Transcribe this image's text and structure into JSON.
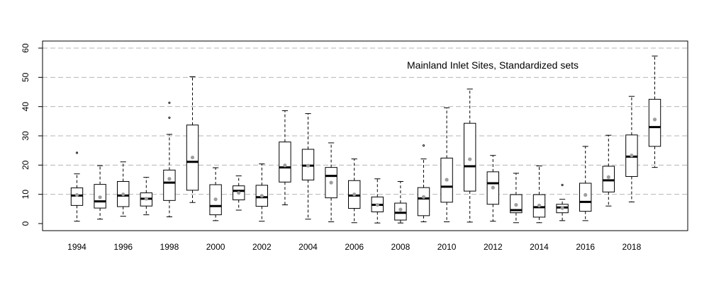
{
  "chart_data": {
    "type": "boxplot",
    "annotation": "Mainland Inlet Sites, Standardized sets",
    "title": "",
    "xlabel": "",
    "ylabel": "",
    "ylim": [
      -2,
      62
    ],
    "y_ticks": [
      0,
      10,
      20,
      30,
      40,
      50,
      60
    ],
    "x_tick_labels": [
      "1994",
      "1996",
      "1998",
      "2000",
      "2002",
      "2004",
      "2006",
      "2008",
      "2010",
      "2012",
      "2014",
      "2016",
      "2018"
    ],
    "grid": "horizontal dashed at y ticks",
    "colors": {
      "box": "#000000",
      "median": "#000000",
      "mean_marker": "#9e9e9e",
      "grid": "#b5b5b5"
    },
    "boxes": [
      {
        "year": 1994,
        "min": 0.8,
        "q1": 6.2,
        "median": 9.6,
        "q3": 12.2,
        "max": 17,
        "mean": 9.8,
        "outliers": [
          24.2
        ]
      },
      {
        "year": 1995,
        "min": 1.5,
        "q1": 5.3,
        "median": 7.6,
        "q3": 13.4,
        "max": 19.8,
        "mean": 9.0,
        "outliers": []
      },
      {
        "year": 1996,
        "min": 2.5,
        "q1": 5.8,
        "median": 9.6,
        "q3": 14.4,
        "max": 21.1,
        "mean": 10.0,
        "outliers": []
      },
      {
        "year": 1997,
        "min": 3.0,
        "q1": 6.0,
        "median": 8.5,
        "q3": 10.5,
        "max": 15.8,
        "mean": 8.5,
        "outliers": []
      },
      {
        "year": 1998,
        "min": 2.3,
        "q1": 7.9,
        "median": 14.0,
        "q3": 18.3,
        "max": 30.5,
        "mean": 15.3,
        "outliers": [
          36.2,
          41.3
        ]
      },
      {
        "year": 1999,
        "min": 7.2,
        "q1": 11.4,
        "median": 21.1,
        "q3": 33.7,
        "max": 50.2,
        "mean": 22.6,
        "outliers": []
      },
      {
        "year": 2000,
        "min": 1.0,
        "q1": 3.0,
        "median": 6.0,
        "q3": 13.3,
        "max": 19.1,
        "mean": 8.3,
        "outliers": []
      },
      {
        "year": 2001,
        "min": 4.6,
        "q1": 8.1,
        "median": 11.2,
        "q3": 12.9,
        "max": 16.3,
        "mean": 10.5,
        "outliers": []
      },
      {
        "year": 2002,
        "min": 0.8,
        "q1": 5.9,
        "median": 9.0,
        "q3": 13.1,
        "max": 20.4,
        "mean": 9.5,
        "outliers": []
      },
      {
        "year": 2003,
        "min": 6.4,
        "q1": 14.2,
        "median": 19.2,
        "q3": 27.9,
        "max": 38.6,
        "mean": 19.9,
        "outliers": []
      },
      {
        "year": 2004,
        "min": 1.5,
        "q1": 14.9,
        "median": 19.8,
        "q3": 25.4,
        "max": 37.6,
        "mean": 19.8,
        "outliers": []
      },
      {
        "year": 2005,
        "min": 0.6,
        "q1": 8.8,
        "median": 16.3,
        "q3": 19.2,
        "max": 27.6,
        "mean": 14.0,
        "outliers": []
      },
      {
        "year": 2006,
        "min": 0.3,
        "q1": 5.2,
        "median": 9.6,
        "q3": 14.7,
        "max": 22.1,
        "mean": 10.0,
        "outliers": []
      },
      {
        "year": 2007,
        "min": 0.2,
        "q1": 4.0,
        "median": 6.4,
        "q3": 9.1,
        "max": 15.3,
        "mean": 6.4,
        "outliers": []
      },
      {
        "year": 2008,
        "min": 0.2,
        "q1": 1.2,
        "median": 3.7,
        "q3": 7.0,
        "max": 14.4,
        "mean": 4.8,
        "outliers": []
      },
      {
        "year": 2009,
        "min": 0.6,
        "q1": 2.7,
        "median": 8.6,
        "q3": 12.3,
        "max": 22.1,
        "mean": 9.1,
        "outliers": [
          26.7
        ]
      },
      {
        "year": 2010,
        "min": 0.6,
        "q1": 7.3,
        "median": 12.6,
        "q3": 22.4,
        "max": 39.6,
        "mean": 15.0,
        "outliers": []
      },
      {
        "year": 2011,
        "min": 0.5,
        "q1": 11.1,
        "median": 19.6,
        "q3": 34.3,
        "max": 46.0,
        "mean": 22.0,
        "outliers": []
      },
      {
        "year": 2012,
        "min": 0.8,
        "q1": 6.6,
        "median": 13.8,
        "q3": 17.7,
        "max": 23.3,
        "mean": 12.3,
        "outliers": []
      },
      {
        "year": 2013,
        "min": 0.3,
        "q1": 3.7,
        "median": 4.6,
        "q3": 9.9,
        "max": 17.2,
        "mean": 6.4,
        "outliers": []
      },
      {
        "year": 2014,
        "min": 0.3,
        "q1": 2.2,
        "median": 5.6,
        "q3": 9.9,
        "max": 19.7,
        "mean": 6.2,
        "outliers": []
      },
      {
        "year": 2015,
        "min": 1.0,
        "q1": 3.7,
        "median": 5.5,
        "q3": 6.6,
        "max": 8.3,
        "mean": 5.3,
        "outliers": [
          13.2
        ]
      },
      {
        "year": 2016,
        "min": 1.0,
        "q1": 4.2,
        "median": 7.4,
        "q3": 13.8,
        "max": 26.4,
        "mean": 9.8,
        "outliers": []
      },
      {
        "year": 2017,
        "min": 6.0,
        "q1": 10.8,
        "median": 14.8,
        "q3": 19.6,
        "max": 30.2,
        "mean": 15.9,
        "outliers": []
      },
      {
        "year": 2018,
        "min": 7.4,
        "q1": 16.1,
        "median": 22.9,
        "q3": 30.3,
        "max": 43.5,
        "mean": 23.3,
        "outliers": []
      },
      {
        "year": 2019,
        "min": 19.2,
        "q1": 26.4,
        "median": 33.0,
        "q3": 42.5,
        "max": 57.3,
        "mean": 35.6,
        "outliers": []
      }
    ]
  }
}
